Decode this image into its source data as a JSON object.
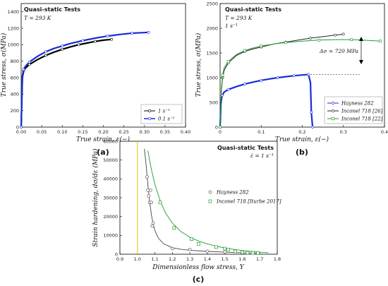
{
  "panels": [
    {
      "label": "(a)",
      "title": "Quasi-static Tests",
      "subtitle": "T = 293 K",
      "xlabel": "True strain, ε(−)",
      "ylabel": "True stress, σ(MPa)",
      "xlim": [
        0,
        0.4
      ],
      "ylim": [
        0,
        1500
      ],
      "xticks": [
        "0.00",
        "0.05",
        "0.10",
        "0.15",
        "0.20",
        "0.25",
        "0.30",
        "0.35",
        "0.40"
      ],
      "yticks": [
        "0",
        "200",
        "400",
        "600",
        "800",
        "1000",
        "1200",
        "1400"
      ],
      "legend": [
        "1 s⁻¹",
        "0.1 s⁻¹"
      ]
    },
    {
      "label": "(b)",
      "title": "Quasi-static Tests",
      "subtitle": "T = 293 K",
      "subtitle2": "1 s⁻¹",
      "xlabel": "True strain, ε(−)",
      "ylabel": "True stress, σ(MPa)",
      "xlim": [
        0,
        0.4
      ],
      "ylim": [
        0,
        2500
      ],
      "xticks": [
        "0",
        "0.1",
        "0.2",
        "0.3",
        "0.4"
      ],
      "yticks": [
        "0",
        "500",
        "1000",
        "1500",
        "2000",
        "2500"
      ],
      "annotation": "Δσ = 720 MPa",
      "legend": [
        "Hayness 282",
        "Inconel 718 [26]",
        "Inconel 718 [22]"
      ]
    },
    {
      "label": "(c)",
      "title": "Quasi-static Tests",
      "subtitle": "ε̇ = 1 s⁻¹",
      "xlabel": "Dimensionless flow stress, Y",
      "ylabel": "Strain hardening, dσ/dε (MPa)",
      "xlim": [
        0.9,
        1.8
      ],
      "ylim": [
        0,
        60000
      ],
      "xticks": [
        "0.9",
        "1.0",
        "1.1",
        "1.2",
        "1.3",
        "1.4",
        "1.5",
        "1.6",
        "1.7",
        "1.8"
      ],
      "yticks": [
        "0",
        "10000",
        "20000",
        "30000",
        "40000",
        "50000",
        "60000"
      ],
      "legend": [
        "Hayness 282",
        "Inconel 718 [Iturbe 2017]"
      ]
    }
  ],
  "chart_data": [
    {
      "type": "line",
      "xlim": [
        0,
        0.4
      ],
      "ylim": [
        0,
        1500
      ],
      "series": [
        {
          "name": "1 s⁻¹",
          "color": "#000000",
          "x": [
            0,
            0.003,
            0.006,
            0.01,
            0.02,
            0.04,
            0.06,
            0.08,
            0.1,
            0.12,
            0.14,
            0.16,
            0.18,
            0.2,
            0.22
          ],
          "y": [
            0,
            600,
            680,
            715,
            760,
            820,
            870,
            910,
            945,
            975,
            1000,
            1020,
            1040,
            1055,
            1065
          ]
        },
        {
          "name": "0.1 s⁻¹",
          "color": "#1c2bd8",
          "x": [
            0,
            0.003,
            0.006,
            0.01,
            0.02,
            0.04,
            0.06,
            0.08,
            0.1,
            0.12,
            0.15,
            0.18,
            0.21,
            0.24,
            0.27,
            0.31
          ],
          "y": [
            0,
            620,
            700,
            735,
            790,
            860,
            915,
            955,
            985,
            1015,
            1050,
            1080,
            1105,
            1125,
            1140,
            1150
          ]
        }
      ]
    },
    {
      "type": "line",
      "xlim": [
        0,
        0.4
      ],
      "ylim": [
        0,
        2500
      ],
      "series": [
        {
          "name": "Hayness 282",
          "color": "#1c2bd8",
          "x": [
            0,
            0.002,
            0.005,
            0.01,
            0.02,
            0.04,
            0.06,
            0.08,
            0.1,
            0.12,
            0.14,
            0.16,
            0.18,
            0.2,
            0.215,
            0.22,
            0.222,
            0.225
          ],
          "y": [
            0,
            500,
            640,
            710,
            760,
            820,
            870,
            910,
            945,
            975,
            1000,
            1020,
            1040,
            1055,
            1065,
            900,
            300,
            0
          ]
        },
        {
          "name": "Inconel 718 [26]",
          "color": "#222222",
          "x": [
            0,
            0.003,
            0.006,
            0.01,
            0.02,
            0.04,
            0.06,
            0.08,
            0.1,
            0.13,
            0.16,
            0.19,
            0.22,
            0.25,
            0.28,
            0.3
          ],
          "y": [
            0,
            700,
            1000,
            1150,
            1300,
            1450,
            1530,
            1580,
            1620,
            1680,
            1720,
            1760,
            1800,
            1830,
            1860,
            1880
          ]
        },
        {
          "name": "Inconel 718 [22]",
          "color": "#1e9a2e",
          "x": [
            0,
            0.003,
            0.006,
            0.01,
            0.02,
            0.04,
            0.06,
            0.08,
            0.1,
            0.13,
            0.16,
            0.2,
            0.24,
            0.28,
            0.32,
            0.36,
            0.39
          ],
          "y": [
            0,
            750,
            1050,
            1200,
            1330,
            1470,
            1550,
            1600,
            1640,
            1680,
            1710,
            1740,
            1760,
            1770,
            1770,
            1755,
            1740
          ]
        }
      ],
      "hline": 1065
    },
    {
      "type": "scatter",
      "xlim": [
        0.9,
        1.8
      ],
      "ylim": [
        0,
        60000
      ],
      "vline": 1.0,
      "series": [
        {
          "name": "Hayness 282",
          "color": "#555555",
          "x": [
            1.055,
            1.06,
            1.065,
            1.07,
            1.075,
            1.08,
            1.085,
            1.09,
            1.2,
            1.3,
            1.4,
            1.5,
            1.6
          ],
          "y": [
            41000,
            34000,
            31000,
            27500,
            34000,
            27500,
            15000,
            16500,
            3000,
            2500,
            1500,
            1200,
            800
          ],
          "fit_x": [
            1.04,
            1.05,
            1.06,
            1.07,
            1.08,
            1.09,
            1.1,
            1.12,
            1.15,
            1.2,
            1.25,
            1.3,
            1.4,
            1.5,
            1.6,
            1.7
          ],
          "fit_y": [
            56000,
            47000,
            37000,
            28000,
            21000,
            16000,
            12500,
            8500,
            5500,
            3500,
            2600,
            2100,
            1500,
            1100,
            800,
            500
          ]
        },
        {
          "name": "Inconel 718 [Iturbe 2017]",
          "color": "#1e9a2e",
          "x": [
            1.13,
            1.21,
            1.31,
            1.35,
            1.45,
            1.5,
            1.52,
            1.56,
            1.6,
            1.63,
            1.66,
            1.69
          ],
          "y": [
            27500,
            14000,
            8000,
            5500,
            3800,
            3000,
            2500,
            1500,
            1000,
            800,
            700,
            600
          ],
          "fit_x": [
            1.06,
            1.08,
            1.1,
            1.13,
            1.16,
            1.2,
            1.25,
            1.3,
            1.35,
            1.4,
            1.45,
            1.5,
            1.55,
            1.6,
            1.65,
            1.7,
            1.75
          ],
          "fit_y": [
            55000,
            45000,
            37000,
            28500,
            22000,
            16500,
            12000,
            9000,
            7000,
            5500,
            4300,
            3300,
            2600,
            2000,
            1500,
            1100,
            800
          ]
        }
      ]
    }
  ]
}
